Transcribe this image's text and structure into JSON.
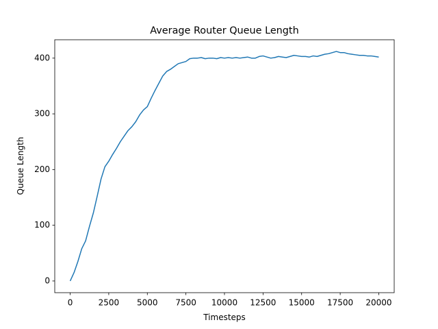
{
  "chart_data": {
    "type": "line",
    "title": "Average Router Queue Length",
    "xlabel": "Timesteps",
    "ylabel": "Queue Length",
    "x": [
      0,
      250,
      500,
      750,
      1000,
      1250,
      1500,
      1750,
      2000,
      2250,
      2500,
      2750,
      3000,
      3250,
      3500,
      3750,
      4000,
      4250,
      4500,
      4750,
      5000,
      5250,
      5500,
      5750,
      6000,
      6250,
      6500,
      6750,
      7000,
      7250,
      7500,
      7750,
      8000,
      8250,
      8500,
      8750,
      9000,
      9250,
      9500,
      9750,
      10000,
      10250,
      10500,
      10750,
      11000,
      11250,
      11500,
      11750,
      12000,
      12250,
      12500,
      12750,
      13000,
      13250,
      13500,
      13750,
      14000,
      14250,
      14500,
      14750,
      15000,
      15250,
      15500,
      15750,
      16000,
      16250,
      16500,
      16750,
      17000,
      17250,
      17500,
      17750,
      18000,
      18250,
      18500,
      18750,
      19000,
      19250,
      19500,
      19750,
      20000
    ],
    "series": [
      {
        "color": "#1f77b4",
        "values": [
          0,
          15,
          35,
          58,
          72,
          98,
          122,
          152,
          183,
          205,
          215,
          227,
          238,
          250,
          260,
          270,
          277,
          286,
          298,
          307,
          313,
          328,
          342,
          355,
          368,
          376,
          380,
          385,
          390,
          392,
          394,
          399,
          400,
          400,
          401,
          399,
          400,
          400,
          399,
          401,
          400,
          401,
          400,
          401,
          400,
          401,
          402,
          400,
          400,
          403,
          404,
          402,
          400,
          401,
          403,
          402,
          401,
          403,
          405,
          404,
          403,
          403,
          402,
          404,
          403,
          405,
          407,
          408,
          410,
          412,
          410,
          410,
          408,
          407,
          406,
          405,
          405,
          404,
          404,
          403,
          402
        ]
      }
    ],
    "xlim": [
      -1000,
      21000
    ],
    "ylim": [
      -21,
      433
    ],
    "xticks": [
      0,
      2500,
      5000,
      7500,
      10000,
      12500,
      15000,
      17500,
      20000
    ],
    "yticks": [
      0,
      100,
      200,
      300,
      400
    ]
  }
}
